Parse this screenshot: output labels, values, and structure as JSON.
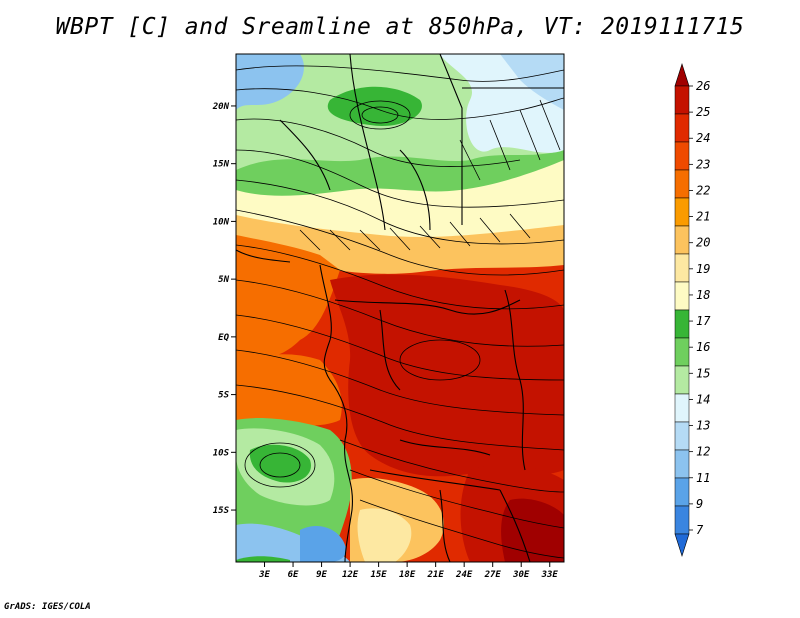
{
  "title": "WBPT [C] and Sreamline at 850hPa, VT: 2019111715",
  "credit": "GrADS: IGES/COLA",
  "map": {
    "lat_labels": [
      "20N",
      "15N",
      "10N",
      "5N",
      "EQ",
      "5S",
      "10S",
      "15S"
    ],
    "lon_labels": [
      "3E",
      "6E",
      "9E",
      "12E",
      "15E",
      "18E",
      "21E",
      "24E",
      "27E",
      "30E",
      "33E"
    ],
    "lat_values": [
      20,
      15,
      10,
      5,
      0,
      -5,
      -10,
      -15
    ],
    "lon_values": [
      3,
      6,
      9,
      12,
      15,
      18,
      21,
      24,
      27,
      30,
      33
    ],
    "lon_range": [
      0,
      34.5
    ],
    "lat_range": [
      -19.5,
      24.5
    ]
  },
  "colorbar": {
    "labels": [
      "26",
      "25",
      "24",
      "23",
      "22",
      "21",
      "20",
      "19",
      "18",
      "17",
      "16",
      "15",
      "14",
      "13",
      "12",
      "11",
      "9",
      "7"
    ],
    "colors": [
      "#a00000",
      "#c41200",
      "#e02a00",
      "#ef4a00",
      "#f66e00",
      "#fa9b00",
      "#fcc35e",
      "#fde8a2",
      "#fefbc4",
      "#37b536",
      "#6fcf5e",
      "#b4eaa2",
      "#e0f5fc",
      "#b5dbf5",
      "#8cc3ef",
      "#5aa3e8",
      "#3a85e0",
      "#1f6ad8"
    ]
  }
}
